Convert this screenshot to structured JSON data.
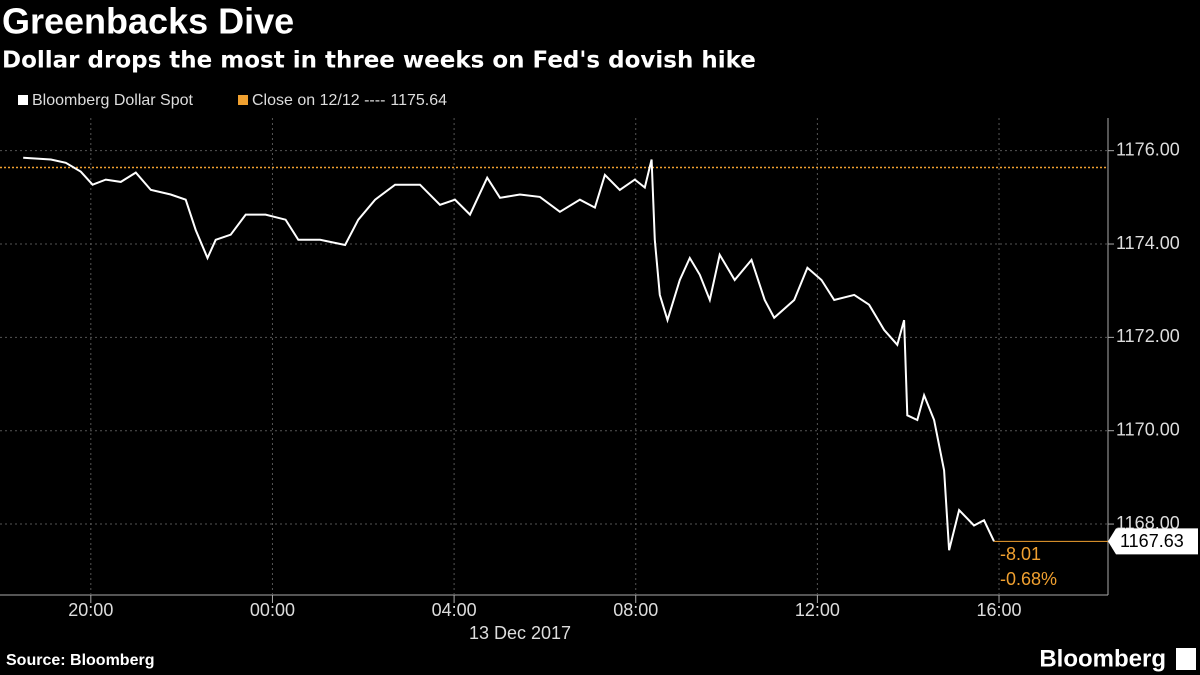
{
  "chart_data": {
    "type": "line",
    "title": "Greenbacks Dive",
    "subtitle": "Dollar drops the most in three weeks on Fed's dovish hike",
    "x_date_label": "13 Dec 2017",
    "source": "Source: Bloomberg",
    "brand": "Bloomberg",
    "x": [
      -5.49,
      -4.88,
      -4.55,
      -4.22,
      -3.96,
      -3.67,
      -3.34,
      -3.01,
      -2.68,
      -2.24,
      -1.91,
      -1.69,
      -1.43,
      -1.25,
      -0.92,
      -0.59,
      -0.15,
      0.29,
      0.57,
      1.05,
      1.6,
      1.89,
      2.26,
      2.7,
      3.25,
      3.69,
      4.02,
      4.35,
      4.73,
      5.01,
      5.45,
      5.89,
      6.33,
      6.77,
      7.1,
      7.32,
      7.65,
      7.98,
      8.2,
      8.35,
      8.42,
      8.53,
      8.7,
      8.97,
      9.19,
      9.41,
      9.63,
      9.85,
      10.18,
      10.55,
      10.84,
      11.05,
      11.49,
      11.78,
      12.09,
      12.37,
      12.81,
      13.14,
      13.47,
      13.76,
      13.91,
      13.98,
      14.2,
      14.35,
      14.57,
      14.79,
      14.9,
      15.12,
      15.45,
      15.67,
      15.89
    ],
    "series": [
      {
        "name": "Bloomberg Dollar Spot",
        "color": "#ffffff",
        "values": [
          1175.85,
          1175.81,
          1175.74,
          1175.55,
          1175.27,
          1175.38,
          1175.33,
          1175.53,
          1175.16,
          1175.06,
          1174.95,
          1174.3,
          1173.7,
          1174.09,
          1174.2,
          1174.63,
          1174.63,
          1174.52,
          1174.09,
          1174.09,
          1173.98,
          1174.52,
          1174.95,
          1175.27,
          1175.27,
          1174.84,
          1174.95,
          1174.63,
          1175.42,
          1174.99,
          1175.06,
          1175.01,
          1174.69,
          1174.95,
          1174.78,
          1175.48,
          1175.16,
          1175.38,
          1175.21,
          1175.81,
          1174.09,
          1172.91,
          1172.37,
          1173.23,
          1173.7,
          1173.34,
          1172.8,
          1173.77,
          1173.23,
          1173.66,
          1172.8,
          1172.42,
          1172.8,
          1173.49,
          1173.23,
          1172.8,
          1172.91,
          1172.7,
          1172.16,
          1171.84,
          1172.37,
          1170.33,
          1170.23,
          1170.76,
          1170.23,
          1169.15,
          1167.44,
          1168.3,
          1167.97,
          1168.08,
          1167.63
        ]
      }
    ],
    "reference": {
      "name": "Close on 12/12 ----",
      "value": 1175.64,
      "color": "#f0a030"
    },
    "annotations": [
      "-8.01",
      "-0.68%"
    ],
    "xlim": [
      -6,
      18.4
    ],
    "ylim": [
      1166.48,
      1176.7
    ],
    "xticks": [
      {
        "value": -4,
        "label": "20:00"
      },
      {
        "value": 0,
        "label": "00:00"
      },
      {
        "value": 4,
        "label": "04:00"
      },
      {
        "value": 8,
        "label": "08:00"
      },
      {
        "value": 12,
        "label": "12:00"
      },
      {
        "value": 16,
        "label": "16:00"
      }
    ],
    "yticks": [
      {
        "value": 1168,
        "label": "1168.00"
      },
      {
        "value": 1170,
        "label": "1170.00"
      },
      {
        "value": 1172,
        "label": "1172.00"
      },
      {
        "value": 1174,
        "label": "1174.00"
      },
      {
        "value": 1176,
        "label": "1176.00"
      }
    ],
    "grid": true
  }
}
